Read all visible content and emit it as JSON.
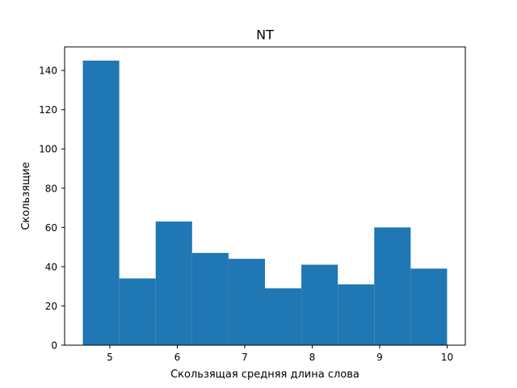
{
  "chart_data": {
    "type": "bar",
    "title": "NT",
    "xlabel": "Скользящая средняя длина слова",
    "ylabel": "Скользящие",
    "bin_edges": [
      4.6,
      5.14,
      5.68,
      6.22,
      6.76,
      7.3,
      7.84,
      8.38,
      8.92,
      9.46,
      10.0
    ],
    "values": [
      145,
      34,
      63,
      47,
      44,
      29,
      41,
      31,
      60,
      39
    ],
    "xlim": [
      4.33,
      10.27
    ],
    "ylim": [
      0,
      152
    ],
    "xticks": [
      5,
      6,
      7,
      8,
      9,
      10
    ],
    "yticks": [
      0,
      20,
      40,
      60,
      80,
      100,
      120,
      140
    ],
    "bar_color": "#1f77b4",
    "grid": false,
    "legend": "none"
  }
}
